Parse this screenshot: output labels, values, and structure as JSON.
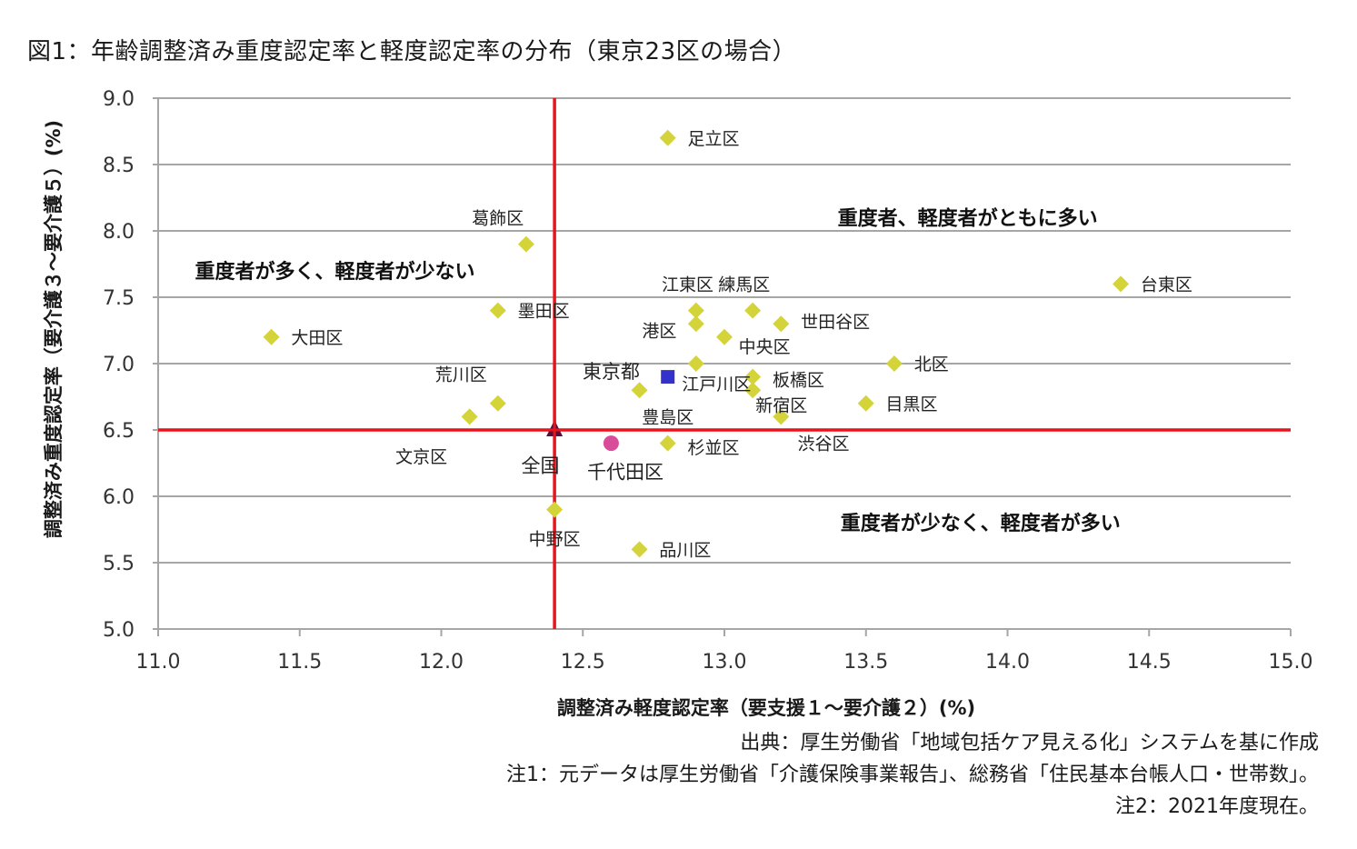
{
  "title": "図1：年齢調整済み重度認定率と軽度認定率の分布（東京23区の場合）",
  "chart_data": {
    "type": "scatter",
    "title": "図1：年齢調整済み重度認定率と軽度認定率の分布（東京23区の場合）",
    "xlabel": "調整済み軽度認定率（要支援１～要介護２）(%)",
    "ylabel": "調整済み重度認定率（要介護３～要介護５）(%)",
    "xlim": [
      11.0,
      15.0
    ],
    "ylim": [
      5.0,
      9.0
    ],
    "x_ticks": [
      "11.0",
      "11.5",
      "12.0",
      "12.5",
      "13.0",
      "13.5",
      "14.0",
      "14.5",
      "15.0"
    ],
    "y_ticks": [
      "9.0",
      "8.5",
      "8.0",
      "7.5",
      "7.0",
      "6.5",
      "6.0",
      "5.5",
      "5.0"
    ],
    "grid": "horizontal",
    "reference_lines": {
      "x": 12.4,
      "y": 6.5,
      "color": "#e8141c"
    },
    "quadrant_labels": [
      {
        "text": "重度者、軽度者がともに多い",
        "x": 13.4,
        "y": 8.1
      },
      {
        "text": "重度者が多く、軽度者が少ない",
        "x": 11.13,
        "y": 7.7
      },
      {
        "text": "重度者が少なく、軽度者が多い",
        "x": 13.41,
        "y": 5.8
      }
    ],
    "series": [
      {
        "name": "23区",
        "marker": "diamond",
        "color": "#d4d43a",
        "points": [
          {
            "label": "足立区",
            "x": 12.8,
            "y": 8.7,
            "lx": 12.87,
            "ly": 8.7,
            "anchor": "start"
          },
          {
            "label": "葛飾区",
            "x": 12.3,
            "y": 7.9,
            "lx": 12.2,
            "ly": 8.1,
            "anchor": "middle"
          },
          {
            "label": "台東区",
            "x": 14.4,
            "y": 7.6,
            "lx": 14.47,
            "ly": 7.6,
            "anchor": "start"
          },
          {
            "label": "墨田区",
            "x": 12.2,
            "y": 7.4,
            "lx": 12.27,
            "ly": 7.4,
            "anchor": "start"
          },
          {
            "label": "大田区",
            "x": 11.4,
            "y": 7.2,
            "lx": 11.47,
            "ly": 7.2,
            "anchor": "start"
          },
          {
            "label": "江東区",
            "x": 12.9,
            "y": 7.4,
            "lx": 12.87,
            "ly": 7.6,
            "anchor": "middle"
          },
          {
            "label": "練馬区",
            "x": 13.1,
            "y": 7.4,
            "lx": 13.07,
            "ly": 7.6,
            "anchor": "middle"
          },
          {
            "label": "港区",
            "x": 12.9,
            "y": 7.3,
            "lx": 12.77,
            "ly": 7.25,
            "anchor": "middle"
          },
          {
            "label": "世田谷区",
            "x": 13.2,
            "y": 7.3,
            "lx": 13.27,
            "ly": 7.32,
            "anchor": "start"
          },
          {
            "label": "中央区",
            "x": 13.0,
            "y": 7.2,
            "lx": 13.05,
            "ly": 7.13,
            "anchor": "start"
          },
          {
            "label": "北区",
            "x": 13.6,
            "y": 7.0,
            "lx": 13.67,
            "ly": 7.0,
            "anchor": "start"
          },
          {
            "label": "江戸川区",
            "x": 12.9,
            "y": 7.0,
            "lx": 12.85,
            "ly": 6.85,
            "anchor": "start"
          },
          {
            "label": "板橋区",
            "x": 13.1,
            "y": 6.9,
            "lx": 13.17,
            "ly": 6.88,
            "anchor": "start"
          },
          {
            "label": "新宿区",
            "x": 13.1,
            "y": 6.8,
            "lx": 13.11,
            "ly": 6.69,
            "anchor": "start"
          },
          {
            "label": "目黒区",
            "x": 13.5,
            "y": 6.7,
            "lx": 13.57,
            "ly": 6.7,
            "anchor": "start"
          },
          {
            "label": "荒川区",
            "x": 12.2,
            "y": 6.7,
            "lx": 12.07,
            "ly": 6.92,
            "anchor": "middle"
          },
          {
            "label": "豊島区",
            "x": 12.7,
            "y": 6.8,
            "lx": 12.8,
            "ly": 6.6,
            "anchor": "middle"
          },
          {
            "label": "文京区",
            "x": 12.1,
            "y": 6.6,
            "lx": 11.93,
            "ly": 6.3,
            "anchor": "middle"
          },
          {
            "label": "渋谷区",
            "x": 13.2,
            "y": 6.6,
            "lx": 13.35,
            "ly": 6.4,
            "anchor": "middle"
          },
          {
            "label": "杉並区",
            "x": 12.8,
            "y": 6.4,
            "lx": 12.87,
            "ly": 6.37,
            "anchor": "start"
          },
          {
            "label": "中野区",
            "x": 12.4,
            "y": 5.9,
            "lx": 12.4,
            "ly": 5.68,
            "anchor": "middle"
          },
          {
            "label": "品川区",
            "x": 12.7,
            "y": 5.6,
            "lx": 12.77,
            "ly": 5.6,
            "anchor": "start"
          }
        ]
      },
      {
        "name": "東京都",
        "marker": "square",
        "color": "#3333cc",
        "points": [
          {
            "label": "東京都",
            "x": 12.8,
            "y": 6.9,
            "lx": 12.6,
            "ly": 6.94,
            "anchor": "middle"
          }
        ]
      },
      {
        "name": "全国",
        "marker": "triangle",
        "color": "#5a0f3a",
        "points": [
          {
            "label": "全国",
            "x": 12.4,
            "y": 6.5,
            "lx": 12.35,
            "ly": 6.23,
            "anchor": "middle"
          }
        ]
      },
      {
        "name": "千代田区",
        "marker": "circle",
        "color": "#d94c9a",
        "points": [
          {
            "label": "千代田区",
            "x": 12.6,
            "y": 6.4,
            "lx": 12.65,
            "ly": 6.18,
            "anchor": "middle"
          }
        ]
      }
    ]
  },
  "notes": {
    "source": "出典：厚生労働省「地域包括ケア見える化」システムを基に作成",
    "note1": "注1：元データは厚生労働省「介護保険事業報告」、総務省「住民基本台帳人口・世帯数」。",
    "note2": "注2：2021年度現在。"
  }
}
